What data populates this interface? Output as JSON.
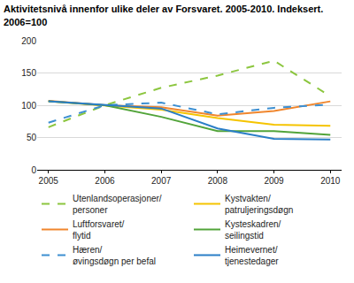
{
  "chart_data": {
    "type": "line",
    "title": "Aktivitetsnivå innenfor ulike deler av Forsvaret. 2005-2010. Indeksert.\n2006=100",
    "x": [
      2005,
      2006,
      2007,
      2008,
      2009,
      2010
    ],
    "xlim": [
      2004.8,
      2010.2
    ],
    "xticks": [
      2005,
      2006,
      2007,
      2008,
      2009,
      2010
    ],
    "ylim": [
      0,
      200
    ],
    "yticks": [
      0,
      50,
      100,
      150,
      200
    ],
    "grid": true,
    "legend": "bottom",
    "series": [
      {
        "name": "Utenlandsoperasjoner/personer",
        "color": "#8cc63f",
        "line_style": "dash",
        "values": [
          66,
          100,
          127,
          146,
          169,
          114
        ]
      },
      {
        "name": "Kystvakten/patruljeringsdøgn",
        "color": "#f5c400",
        "line_style": "solid",
        "values": [
          106,
          100,
          93,
          80,
          70,
          68
        ]
      },
      {
        "name": "Luftforsvaret/flytid",
        "color": "#f0862d",
        "line_style": "solid",
        "values": [
          107,
          100,
          97,
          84,
          91,
          106
        ]
      },
      {
        "name": "Kysteskadren/seilingstid",
        "color": "#52a43a",
        "line_style": "solid",
        "values": [
          106,
          100,
          82,
          60,
          60,
          54
        ]
      },
      {
        "name": "Hæren/øvingsdøgn per befal",
        "color": "#3d8fd1",
        "line_style": "dash",
        "values": [
          73,
          100,
          104,
          86,
          96,
          101
        ]
      },
      {
        "name": "Heimevernet/tjenestedager",
        "color": "#2a7ec7",
        "line_style": "solid",
        "values": [
          106,
          100,
          95,
          64,
          48,
          47
        ]
      }
    ]
  }
}
